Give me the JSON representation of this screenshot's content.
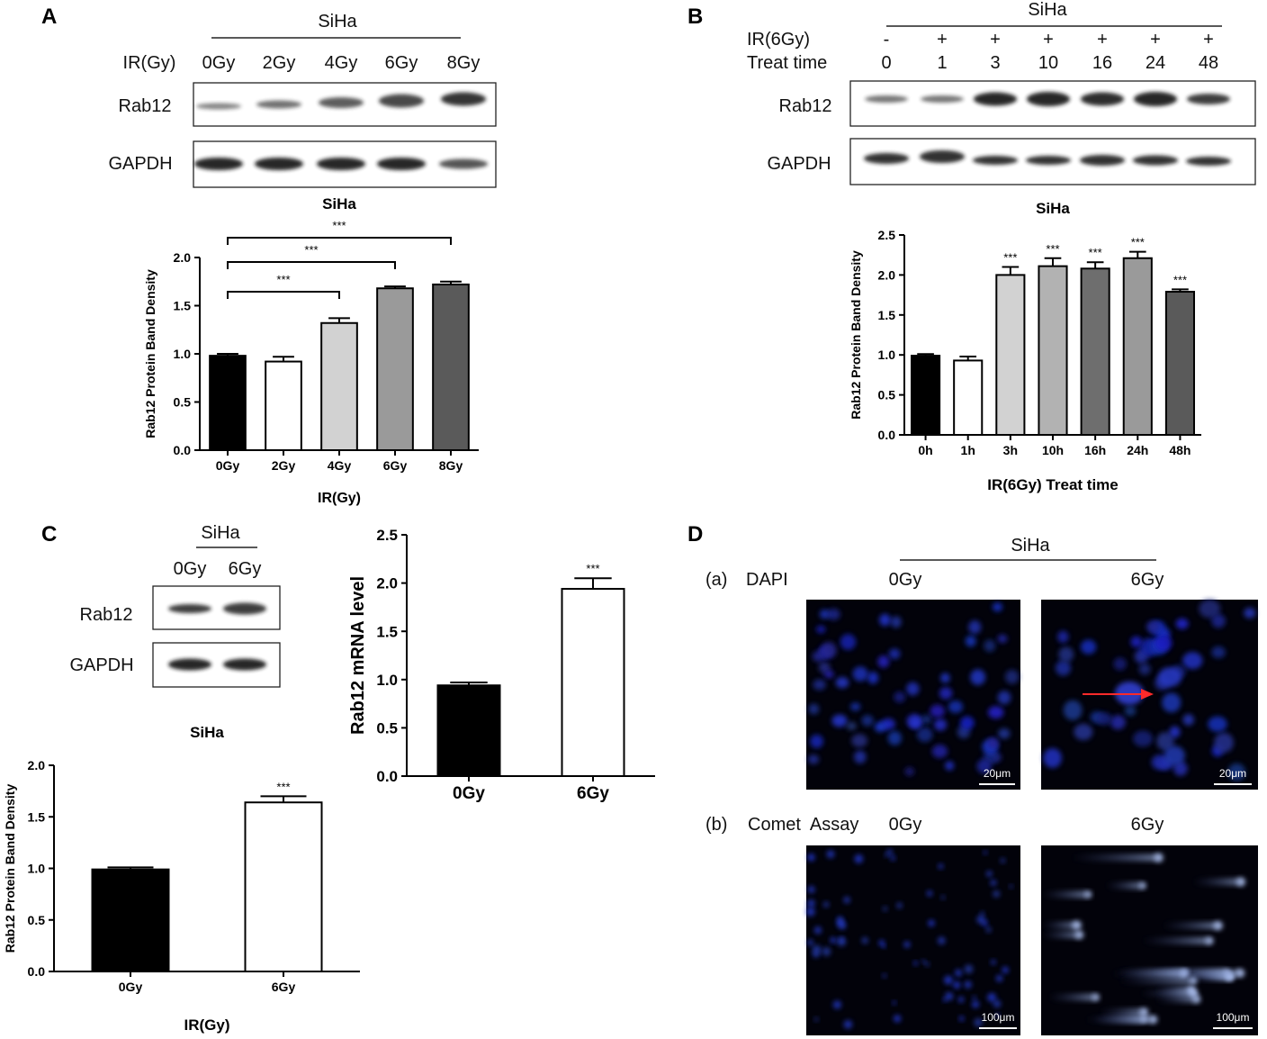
{
  "panels": {
    "A": {
      "letter": "A",
      "cell_line": "SiHa",
      "condition_label": "IR(Gy)",
      "lanes": [
        "0Gy",
        "2Gy",
        "4Gy",
        "6Gy",
        "8Gy"
      ],
      "blots": [
        "Rab12",
        "GAPDH"
      ]
    },
    "B": {
      "letter": "B",
      "cell_line": "SiHa",
      "row1_label": "IR(6Gy)",
      "row1_values": [
        "-",
        "+",
        "+",
        "+",
        "+",
        "+",
        "+"
      ],
      "row2_label": "Treat time",
      "row2_values": [
        "0",
        "1",
        "3",
        "10",
        "16",
        "24",
        "48"
      ],
      "blots": [
        "Rab12",
        "GAPDH"
      ]
    },
    "C": {
      "letter": "C",
      "cell_line": "SiHa",
      "lanes": [
        "0Gy",
        "6Gy"
      ],
      "blots": [
        "Rab12",
        "GAPDH"
      ]
    },
    "D": {
      "letter": "D",
      "cell_line": "SiHa",
      "row_a_tag": "(a)",
      "row_a_label": "DAPI",
      "row_b_tag": "(b)",
      "row_b_label": "Comet  Assay",
      "col_labels": [
        "0Gy",
        "6Gy"
      ],
      "scale_a": "20μm",
      "scale_b": "100μm"
    }
  },
  "chart_data": [
    {
      "id": "A",
      "type": "bar",
      "title": "SiHa",
      "xlabel": "IR(Gy)",
      "ylabel": "Rab12 Protein Band Density",
      "categories": [
        "0Gy",
        "2Gy",
        "4Gy",
        "6Gy",
        "8Gy"
      ],
      "values": [
        0.98,
        0.92,
        1.32,
        1.68,
        1.72
      ],
      "errors": [
        0.02,
        0.05,
        0.05,
        0.02,
        0.03
      ],
      "fills": [
        "#000000",
        "#ffffff",
        "#d2d2d2",
        "#9a9a9a",
        "#5a5a5a"
      ],
      "ylim": [
        0,
        2.0
      ],
      "yticks": [
        "0.0",
        "0.5",
        "1.0",
        "1.5",
        "2.0"
      ],
      "brackets": [
        {
          "from": 0,
          "to": 2,
          "label": "***"
        },
        {
          "from": 0,
          "to": 3,
          "label": "***"
        },
        {
          "from": 0,
          "to": 4,
          "label": "***"
        }
      ]
    },
    {
      "id": "B",
      "type": "bar",
      "title": "SiHa",
      "xlabel": "IR(6Gy) Treat time",
      "ylabel": "Rab12 Protein Band Density",
      "categories": [
        "0h",
        "1h",
        "3h",
        "10h",
        "16h",
        "24h",
        "48h"
      ],
      "values": [
        0.99,
        0.93,
        2.0,
        2.11,
        2.08,
        2.21,
        1.79
      ],
      "errors": [
        0.02,
        0.05,
        0.1,
        0.1,
        0.08,
        0.08,
        0.03
      ],
      "fills": [
        "#000000",
        "#ffffff",
        "#d2d2d2",
        "#b2b2b2",
        "#6e6e6e",
        "#9a9a9a",
        "#5a5a5a"
      ],
      "ylim": [
        0,
        2.5
      ],
      "yticks": [
        "0.0",
        "0.5",
        "1.0",
        "1.5",
        "2.0",
        "2.5"
      ],
      "sig": [
        "",
        "",
        "***",
        "***",
        "***",
        "***",
        "***"
      ]
    },
    {
      "id": "C1",
      "type": "bar",
      "title": "SiHa",
      "xlabel": "IR(Gy)",
      "ylabel": "Rab12 Protein Band Density",
      "categories": [
        "0Gy",
        "6Gy"
      ],
      "values": [
        0.99,
        1.64
      ],
      "errors": [
        0.02,
        0.06
      ],
      "fills": [
        "#000000",
        "#ffffff"
      ],
      "ylim": [
        0,
        2.0
      ],
      "yticks": [
        "0.0",
        "0.5",
        "1.0",
        "1.5",
        "2.0"
      ],
      "sig": [
        "",
        "***"
      ]
    },
    {
      "id": "C2",
      "type": "bar",
      "title": "",
      "xlabel": "",
      "ylabel": "Rab12 mRNA level",
      "categories": [
        "0Gy",
        "6Gy"
      ],
      "values": [
        0.94,
        1.94
      ],
      "errors": [
        0.03,
        0.11
      ],
      "fills": [
        "#000000",
        "#ffffff"
      ],
      "ylim": [
        0,
        2.5
      ],
      "yticks": [
        "0.0",
        "0.5",
        "1.0",
        "1.5",
        "2.0",
        "2.5"
      ],
      "sig": [
        "",
        "***"
      ]
    }
  ]
}
